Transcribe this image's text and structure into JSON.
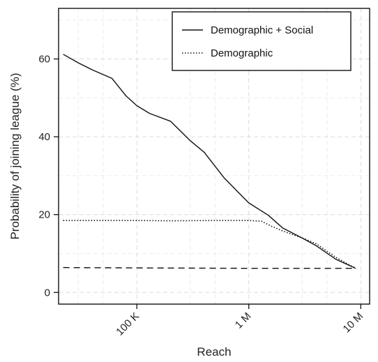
{
  "chart_data": {
    "type": "line",
    "title": "",
    "xlabel": "Reach",
    "ylabel": "Probability of joining league (%)",
    "x_scale": "log",
    "xlim": [
      20000,
      12000000
    ],
    "ylim": [
      -3,
      73
    ],
    "x_ticks": [
      {
        "value": 10000,
        "label": ""
      },
      {
        "value": 100000,
        "label": "100 K"
      },
      {
        "value": 1000000,
        "label": "1 M"
      },
      {
        "value": 10000000,
        "label": "10 M"
      }
    ],
    "x_minor_ticks": [
      30000,
      50000,
      300000,
      500000,
      3000000,
      5000000
    ],
    "y_ticks": [
      {
        "value": 0,
        "label": "0"
      },
      {
        "value": 20,
        "label": "20"
      },
      {
        "value": 40,
        "label": "40"
      },
      {
        "value": 60,
        "label": "60"
      }
    ],
    "grid": true,
    "legend_position": "top-right",
    "series": [
      {
        "name": "Demographic + Social",
        "style": "solid",
        "color": "#111111",
        "x": [
          22000,
          30000,
          40000,
          60000,
          80000,
          100000,
          130000,
          200000,
          300000,
          400000,
          600000,
          800000,
          1000000,
          1500000,
          2000000,
          3000000,
          4000000,
          6000000,
          9000000
        ],
        "y": [
          61.2,
          59.0,
          57.2,
          55.0,
          50.5,
          48.0,
          46.0,
          44.0,
          39.0,
          36.0,
          29.5,
          25.8,
          23.0,
          19.8,
          16.6,
          14.0,
          12.0,
          8.5,
          6.2
        ]
      },
      {
        "name": "Demographic",
        "style": "dotted",
        "color": "#111111",
        "x": [
          22000,
          50000,
          100000,
          200000,
          500000,
          1000000,
          1300000,
          1600000,
          2000000,
          3000000,
          4000000,
          6000000,
          9000000
        ],
        "y": [
          18.5,
          18.5,
          18.5,
          18.4,
          18.5,
          18.5,
          18.3,
          17.0,
          15.8,
          14.0,
          12.5,
          9.0,
          6.2
        ]
      },
      {
        "name": "",
        "style": "dashed",
        "color": "#111111",
        "x": [
          22000,
          100000,
          1000000,
          9000000
        ],
        "y": [
          6.4,
          6.3,
          6.2,
          6.2
        ]
      }
    ]
  }
}
